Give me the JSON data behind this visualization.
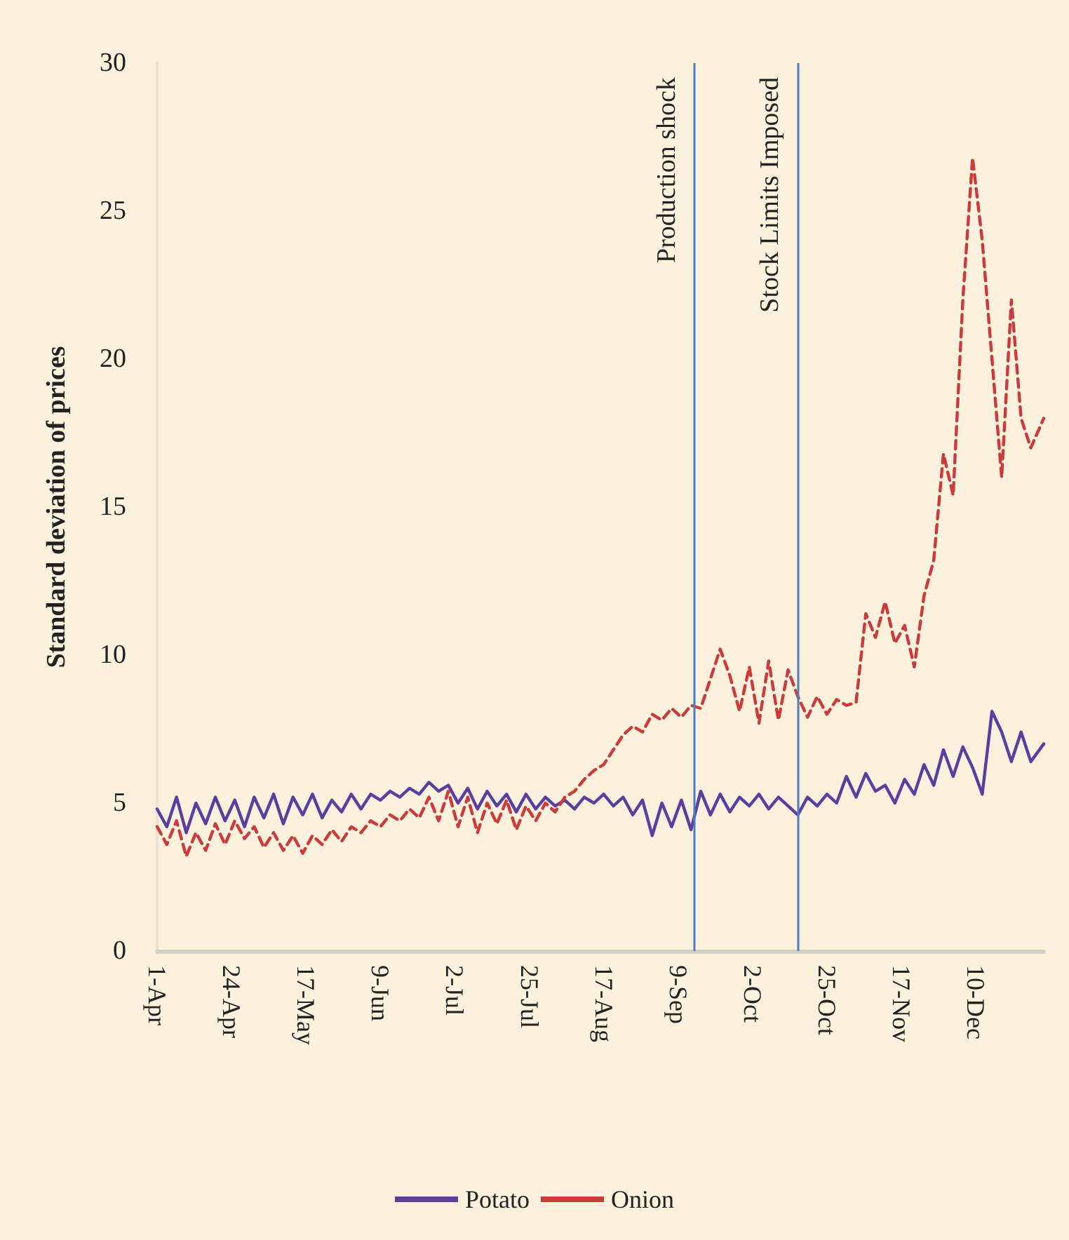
{
  "chart_data": {
    "type": "line",
    "ylabel": "Standard deviation of prices",
    "ylim": [
      0,
      30
    ],
    "yticks": [
      0,
      5,
      10,
      15,
      20,
      25,
      30
    ],
    "xlim": [
      "--04-01",
      "--12-31"
    ],
    "xticks": [
      {
        "value": "--04-01",
        "label": "1-Apr"
      },
      {
        "value": "--04-24",
        "label": "24-Apr"
      },
      {
        "value": "--05-17",
        "label": "17-May"
      },
      {
        "value": "--06-09",
        "label": "9-Jun"
      },
      {
        "value": "--07-02",
        "label": "2-Jul"
      },
      {
        "value": "--07-25",
        "label": "25-Jul"
      },
      {
        "value": "--08-17",
        "label": "17-Aug"
      },
      {
        "value": "--09-09",
        "label": "9-Sep"
      },
      {
        "value": "--10-02",
        "label": "2-Oct"
      },
      {
        "value": "--10-25",
        "label": "25-Oct"
      },
      {
        "value": "--11-17",
        "label": "17-Nov"
      },
      {
        "value": "--12-10",
        "label": "10-Dec"
      }
    ],
    "x": [
      "--04-01",
      "--04-04",
      "--04-07",
      "--04-10",
      "--04-13",
      "--04-16",
      "--04-19",
      "--04-22",
      "--04-25",
      "--04-28",
      "--05-01",
      "--05-04",
      "--05-07",
      "--05-10",
      "--05-13",
      "--05-16",
      "--05-19",
      "--05-22",
      "--05-25",
      "--05-28",
      "--05-31",
      "--06-03",
      "--06-06",
      "--06-09",
      "--06-12",
      "--06-15",
      "--06-18",
      "--06-21",
      "--06-24",
      "--06-27",
      "--06-30",
      "--07-03",
      "--07-06",
      "--07-09",
      "--07-12",
      "--07-15",
      "--07-18",
      "--07-21",
      "--07-24",
      "--07-27",
      "--07-30",
      "--08-02",
      "--08-05",
      "--08-08",
      "--08-11",
      "--08-14",
      "--08-17",
      "--08-20",
      "--08-23",
      "--08-26",
      "--08-29",
      "--09-01",
      "--09-04",
      "--09-07",
      "--09-10",
      "--09-13",
      "--09-16",
      "--09-19",
      "--09-22",
      "--09-25",
      "--09-28",
      "--10-01",
      "--10-04",
      "--10-07",
      "--10-10",
      "--10-13",
      "--10-16",
      "--10-19",
      "--10-22",
      "--10-25",
      "--10-28",
      "--10-31",
      "--11-03",
      "--11-06",
      "--11-09",
      "--11-12",
      "--11-15",
      "--11-18",
      "--11-21",
      "--11-24",
      "--11-27",
      "--11-30",
      "--12-03",
      "--12-06",
      "--12-09",
      "--12-12",
      "--12-15",
      "--12-18",
      "--12-21",
      "--12-24",
      "--12-27",
      "--12-31"
    ],
    "series": [
      {
        "name": "Potato",
        "color": "#5b3fa0",
        "line_style": "solid",
        "values": [
          4.8,
          4.2,
          5.2,
          4.0,
          5.0,
          4.3,
          5.2,
          4.4,
          5.1,
          4.2,
          5.2,
          4.5,
          5.3,
          4.3,
          5.2,
          4.6,
          5.3,
          4.5,
          5.1,
          4.7,
          5.3,
          4.8,
          5.3,
          5.1,
          5.4,
          5.2,
          5.5,
          5.3,
          5.7,
          5.4,
          5.6,
          5.0,
          5.5,
          4.8,
          5.4,
          4.9,
          5.3,
          4.7,
          5.3,
          4.8,
          5.2,
          4.9,
          5.1,
          4.8,
          5.2,
          5.0,
          5.3,
          4.9,
          5.2,
          4.6,
          5.1,
          3.9,
          5.0,
          4.2,
          5.1,
          4.1,
          5.4,
          4.6,
          5.3,
          4.7,
          5.2,
          4.9,
          5.3,
          4.8,
          5.2,
          4.9,
          4.6,
          5.2,
          4.9,
          5.3,
          5.0,
          5.9,
          5.2,
          6.0,
          5.4,
          5.6,
          5.0,
          5.8,
          5.3,
          6.3,
          5.6,
          6.8,
          5.9,
          6.9,
          6.2,
          5.3,
          8.1,
          7.4,
          6.4,
          7.4,
          6.4,
          7.0
        ]
      },
      {
        "name": "Onion",
        "color": "#cc3a3a",
        "line_style": "dashed",
        "values": [
          4.2,
          3.6,
          4.4,
          3.2,
          4.0,
          3.4,
          4.3,
          3.6,
          4.4,
          3.8,
          4.2,
          3.5,
          4.0,
          3.4,
          3.9,
          3.3,
          3.9,
          3.6,
          4.1,
          3.7,
          4.2,
          4.0,
          4.4,
          4.2,
          4.6,
          4.4,
          4.8,
          4.5,
          5.2,
          4.4,
          5.4,
          4.2,
          5.2,
          4.0,
          5.0,
          4.3,
          5.1,
          4.1,
          4.9,
          4.4,
          5.0,
          4.7,
          5.2,
          5.4,
          5.8,
          6.1,
          6.3,
          6.8,
          7.3,
          7.6,
          7.4,
          8.0,
          7.8,
          8.2,
          7.9,
          8.3,
          8.2,
          9.2,
          10.2,
          9.3,
          8.1,
          9.6,
          7.7,
          9.8,
          7.8,
          9.5,
          8.6,
          7.9,
          8.6,
          8.0,
          8.5,
          8.3,
          8.4,
          11.4,
          10.6,
          11.8,
          10.4,
          11.0,
          9.6,
          12.0,
          13.2,
          16.8,
          15.4,
          22.0,
          26.8,
          24.0,
          20.0,
          16.0,
          22.0,
          18.0,
          17.0,
          18.0
        ]
      }
    ],
    "ref_lines": [
      {
        "axis": "x",
        "value": "--09-14",
        "label": "Production shock",
        "color": "#4a7fc0"
      },
      {
        "axis": "x",
        "value": "--10-16",
        "label": "Stock Limits Imposed",
        "color": "#4a7fc0"
      }
    ],
    "legend": "bottom",
    "grid": false,
    "marker": "none"
  }
}
